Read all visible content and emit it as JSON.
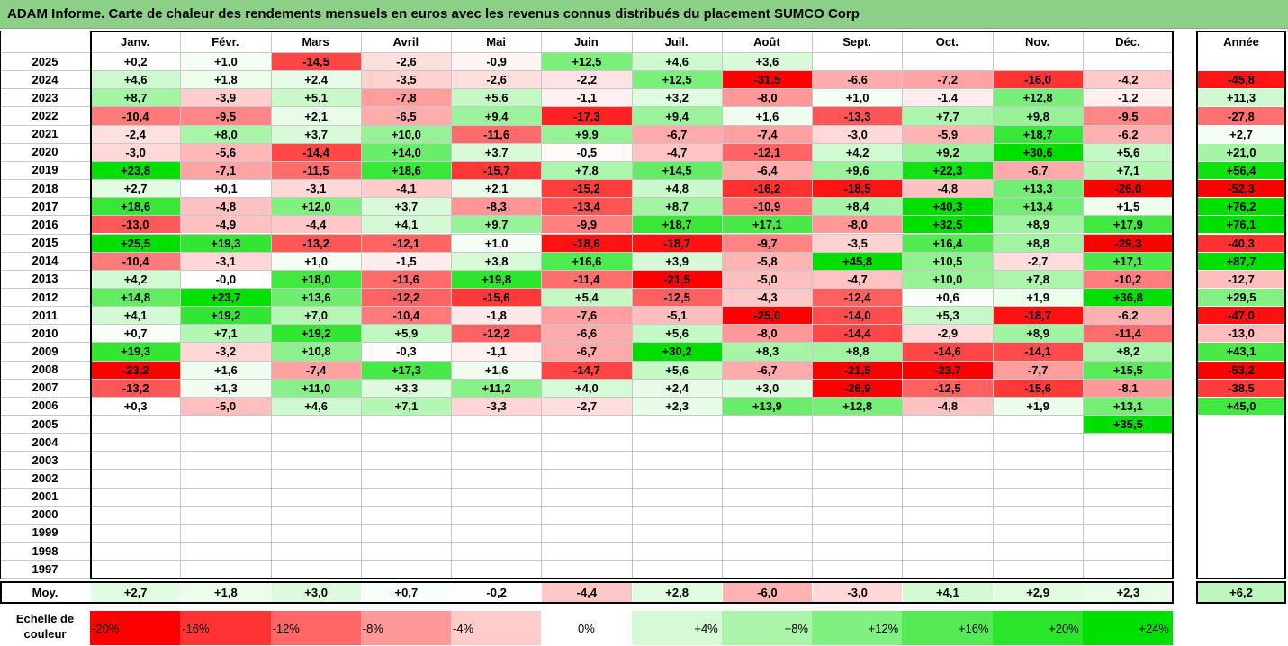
{
  "title": "ADAM Informe. Carte de chaleur des rendements mensuels en euros avec les revenus connus distribués du placement SUMCO Corp",
  "colors": {
    "title_bar": "#8ccf86",
    "negative_max": "#ff0000",
    "neutral": "#ffffff",
    "positive_max": "#00e000"
  },
  "chart_data": {
    "type": "heatmap",
    "title": "ADAM Informe. Carte de chaleur des rendements mensuels en euros avec les revenus connus distribués du placement SUMCO Corp",
    "months": [
      "Janv.",
      "Févr.",
      "Mars",
      "Avril",
      "Mai",
      "Juin",
      "Juil.",
      "Août",
      "Sept.",
      "Oct.",
      "Nov.",
      "Déc."
    ],
    "year_header": "Année",
    "rows": [
      {
        "year": "2025",
        "values": [
          "+0,2",
          "+1,0",
          "-14,5",
          "-2,6",
          "-0,9",
          "+12,5",
          "+4,6",
          "+3,6",
          "",
          "",
          "",
          ""
        ],
        "annual": ""
      },
      {
        "year": "2024",
        "values": [
          "+4,6",
          "+1,8",
          "+2,4",
          "-3,5",
          "-2,6",
          "-2,2",
          "+12,5",
          "-31,5",
          "-6,6",
          "-7,2",
          "-16,0",
          "-4,2"
        ],
        "annual": "-45,8"
      },
      {
        "year": "2023",
        "values": [
          "+8,7",
          "-3,9",
          "+5,1",
          "-7,8",
          "+5,6",
          "-1,1",
          "+3,2",
          "-8,0",
          "+1,0",
          "-1,4",
          "+12,8",
          "-1,2"
        ],
        "annual": "+11,3"
      },
      {
        "year": "2022",
        "values": [
          "-10,4",
          "-9,5",
          "+2,1",
          "-6,5",
          "+9,4",
          "-17,3",
          "+9,4",
          "+1,6",
          "-13,3",
          "+7,7",
          "+9,8",
          "-9,5"
        ],
        "annual": "-27,8"
      },
      {
        "year": "2021",
        "values": [
          "-2,4",
          "+8,0",
          "+3,7",
          "+10,0",
          "-11,6",
          "+9,9",
          "-6,7",
          "-7,4",
          "-3,0",
          "-5,9",
          "+18,7",
          "-6,2"
        ],
        "annual": "+2,7"
      },
      {
        "year": "2020",
        "values": [
          "-3,0",
          "-5,6",
          "-14,4",
          "+14,0",
          "+3,7",
          "-0,5",
          "-4,7",
          "-12,1",
          "+4,2",
          "+9,2",
          "+30,6",
          "+5,6"
        ],
        "annual": "+21,0"
      },
      {
        "year": "2019",
        "values": [
          "+23,8",
          "-7,1",
          "-11,5",
          "+18,6",
          "-15,7",
          "+7,8",
          "+14,5",
          "-6,4",
          "+9,6",
          "+22,3",
          "-6,7",
          "+7,1"
        ],
        "annual": "+56,4"
      },
      {
        "year": "2018",
        "values": [
          "+2,7",
          "+0,1",
          "-3,1",
          "-4,1",
          "+2,1",
          "-15,2",
          "+4,8",
          "-16,2",
          "-18,5",
          "-4,8",
          "+13,3",
          "-26,0"
        ],
        "annual": "-52,3"
      },
      {
        "year": "2017",
        "values": [
          "+18,6",
          "-4,8",
          "+12,0",
          "+3,7",
          "-8,3",
          "-13,4",
          "+8,7",
          "-10,9",
          "+8,4",
          "+40,3",
          "+13,4",
          "+1,5"
        ],
        "annual": "+76,2"
      },
      {
        "year": "2016",
        "values": [
          "-13,0",
          "-4,9",
          "-4,4",
          "+4,1",
          "+9,7",
          "-9,9",
          "+18,7",
          "+17,1",
          "-8,0",
          "+32,5",
          "+8,9",
          "+17,9"
        ],
        "annual": "+76,1"
      },
      {
        "year": "2015",
        "values": [
          "+25,5",
          "+19,3",
          "-13,2",
          "-12,1",
          "+1,0",
          "-18,6",
          "-18,7",
          "-9,7",
          "-3,5",
          "+16,4",
          "+8,8",
          "-29,3"
        ],
        "annual": "-40,3"
      },
      {
        "year": "2014",
        "values": [
          "-10,4",
          "-3,1",
          "+1,0",
          "-1,5",
          "+3,8",
          "+16,6",
          "+3,9",
          "-5,8",
          "+45,8",
          "+10,5",
          "-2,7",
          "+17,1"
        ],
        "annual": "+87,7"
      },
      {
        "year": "2013",
        "values": [
          "+4,2",
          "-0,0",
          "+18,0",
          "-11,6",
          "+19,8",
          "-11,4",
          "-21,5",
          "-5,0",
          "-4,7",
          "+10,0",
          "+7,8",
          "-10,2"
        ],
        "annual": "-12,7"
      },
      {
        "year": "2012",
        "values": [
          "+14,8",
          "+23,7",
          "+13,6",
          "-12,2",
          "-15,6",
          "+5,4",
          "-12,5",
          "-4,3",
          "-12,4",
          "+0,6",
          "+1,9",
          "+36,8"
        ],
        "annual": "+29,5"
      },
      {
        "year": "2011",
        "values": [
          "+4,1",
          "+19,2",
          "+7,0",
          "-10,4",
          "-1,8",
          "-7,6",
          "-5,1",
          "-25,0",
          "-14,0",
          "+5,3",
          "-18,7",
          "-6,2"
        ],
        "annual": "-47,0"
      },
      {
        "year": "2010",
        "values": [
          "+0,7",
          "+7,1",
          "+19,2",
          "+5,9",
          "-12,2",
          "-6,6",
          "+5,6",
          "-8,0",
          "-14,4",
          "-2,9",
          "+8,9",
          "-11,4"
        ],
        "annual": "-13,0"
      },
      {
        "year": "2009",
        "values": [
          "+19,3",
          "-3,2",
          "+10,8",
          "-0,3",
          "-1,1",
          "-6,7",
          "+30,2",
          "+8,3",
          "+8,8",
          "-14,6",
          "-14,1",
          "+8,2"
        ],
        "annual": "+43,1"
      },
      {
        "year": "2008",
        "values": [
          "-23,2",
          "+1,6",
          "-7,4",
          "+17,3",
          "+1,6",
          "-14,7",
          "+5,6",
          "-6,7",
          "-21,5",
          "-23,7",
          "-7,7",
          "+15,5"
        ],
        "annual": "-53,2"
      },
      {
        "year": "2007",
        "values": [
          "-13,2",
          "+1,3",
          "+11,0",
          "+3,3",
          "+11,2",
          "+4,0",
          "+2,4",
          "+3,0",
          "-26,9",
          "-12,5",
          "-15,6",
          "-8,1"
        ],
        "annual": "-38,5"
      },
      {
        "year": "2006",
        "values": [
          "+0,3",
          "-5,0",
          "+4,6",
          "+7,1",
          "-3,3",
          "-2,7",
          "+2,3",
          "+13,9",
          "+12,8",
          "-4,8",
          "+1,9",
          "+13,1"
        ],
        "annual": "+45,0"
      },
      {
        "year": "2005",
        "values": [
          "",
          "",
          "",
          "",
          "",
          "",
          "",
          "",
          "",
          "",
          "",
          "+35,5"
        ],
        "annual": ""
      },
      {
        "year": "2004",
        "values": [
          "",
          "",
          "",
          "",
          "",
          "",
          "",
          "",
          "",
          "",
          "",
          ""
        ],
        "annual": ""
      },
      {
        "year": "2003",
        "values": [
          "",
          "",
          "",
          "",
          "",
          "",
          "",
          "",
          "",
          "",
          "",
          ""
        ],
        "annual": ""
      },
      {
        "year": "2002",
        "values": [
          "",
          "",
          "",
          "",
          "",
          "",
          "",
          "",
          "",
          "",
          "",
          ""
        ],
        "annual": ""
      },
      {
        "year": "2001",
        "values": [
          "",
          "",
          "",
          "",
          "",
          "",
          "",
          "",
          "",
          "",
          "",
          ""
        ],
        "annual": ""
      },
      {
        "year": "2000",
        "values": [
          "",
          "",
          "",
          "",
          "",
          "",
          "",
          "",
          "",
          "",
          "",
          ""
        ],
        "annual": ""
      },
      {
        "year": "1999",
        "values": [
          "",
          "",
          "",
          "",
          "",
          "",
          "",
          "",
          "",
          "",
          "",
          ""
        ],
        "annual": ""
      },
      {
        "year": "1998",
        "values": [
          "",
          "",
          "",
          "",
          "",
          "",
          "",
          "",
          "",
          "",
          "",
          ""
        ],
        "annual": ""
      },
      {
        "year": "1997",
        "values": [
          "",
          "",
          "",
          "",
          "",
          "",
          "",
          "",
          "",
          "",
          "",
          ""
        ],
        "annual": ""
      }
    ],
    "average": {
      "label": "Moy.",
      "values": [
        "+2,7",
        "+1,8",
        "+3,0",
        "+0,7",
        "-0,2",
        "-4,4",
        "+2,8",
        "-6,0",
        "-3,0",
        "+4,1",
        "+2,9",
        "+2,3"
      ],
      "annual": "+6,2"
    },
    "color_scale": {
      "label_line1": "Echelle de",
      "label_line2": "couleur",
      "stops": [
        "-20%",
        "-16%",
        "-12%",
        "-8%",
        "-4%",
        "0%",
        "+4%",
        "+8%",
        "+12%",
        "+16%",
        "+20%",
        "+24%"
      ]
    }
  }
}
